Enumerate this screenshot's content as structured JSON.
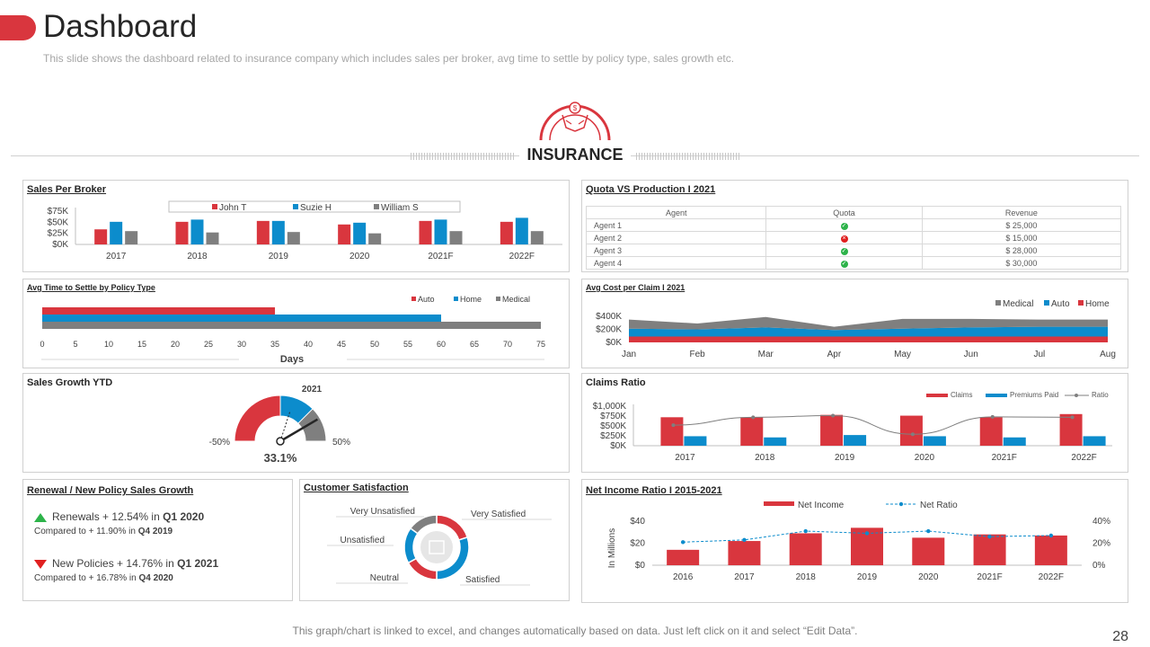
{
  "header": {
    "title": "Dashboard",
    "subtitle": "This slide shows the dashboard related to insurance company which includes sales per broker, avg time to settle by policy type, sales growth etc."
  },
  "banner": {
    "label": "INSURANCE",
    "icon": "insurance-hands-coin-icon"
  },
  "footer": {
    "note": "This graph/chart is linked to excel, and changes automatically based on data. Just left click on it and select “Edit Data”.",
    "page": "28"
  },
  "colors": {
    "red": "#d9363e",
    "blue": "#0c8ccc",
    "gray": "#7f7f7f",
    "green": "#2db34a"
  },
  "sales_per_broker": {
    "title": "Sales Per Broker",
    "chart_data": {
      "type": "bar",
      "categories": [
        "2017",
        "2018",
        "2019",
        "2020",
        "2021F",
        "2022F"
      ],
      "series": [
        {
          "name": "John T",
          "values": [
            34000,
            51000,
            53000,
            45000,
            53000,
            51000
          ]
        },
        {
          "name": "Suzie H",
          "values": [
            51000,
            56000,
            53000,
            49000,
            56000,
            60000
          ]
        },
        {
          "name": "William S",
          "values": [
            30000,
            27000,
            28000,
            25000,
            30000,
            30000
          ]
        }
      ],
      "ylim": [
        0,
        75000
      ],
      "yticks": [
        "$0K",
        "$25K",
        "$50K",
        "$75K"
      ]
    }
  },
  "quota": {
    "title": "Quota VS Production I 2021",
    "columns": [
      "Agent",
      "Quota",
      "Revenue"
    ],
    "rows": [
      {
        "agent": "Agent 1",
        "quota": "met",
        "revenue": "$ 25,000"
      },
      {
        "agent": "Agent 2",
        "quota": "missed",
        "revenue": "$ 15,000"
      },
      {
        "agent": "Agent 3",
        "quota": "met",
        "revenue": "$ 28,000"
      },
      {
        "agent": "Agent 4",
        "quota": "met",
        "revenue": "$ 30,000"
      }
    ]
  },
  "avg_time": {
    "title": "Avg Time to Settle by Policy Type",
    "chart_data": {
      "type": "bar",
      "orientation": "horizontal",
      "series": [
        {
          "name": "Auto",
          "value": 35
        },
        {
          "name": "Home",
          "value": 60
        },
        {
          "name": "Medical",
          "value": 75
        }
      ],
      "xlim": [
        0,
        75
      ],
      "xticks": [
        "0",
        "5",
        "10",
        "15",
        "20",
        "25",
        "30",
        "35",
        "40",
        "45",
        "50",
        "55",
        "60",
        "65",
        "70",
        "75"
      ],
      "xlabel": "Days"
    }
  },
  "avg_cost": {
    "title": "Avg Cost per Claim I 2021",
    "chart_data": {
      "type": "area",
      "categories": [
        "Jan",
        "Feb",
        "Mar",
        "Apr",
        "May",
        "Jun",
        "Jul",
        "Aug"
      ],
      "series": [
        {
          "name": "Home",
          "values": [
            90000,
            90000,
            90000,
            90000,
            90000,
            90000,
            90000,
            90000
          ]
        },
        {
          "name": "Auto",
          "values": [
            120000,
            110000,
            140000,
            100000,
            120000,
            140000,
            150000,
            150000
          ]
        },
        {
          "name": "Medical",
          "values": [
            140000,
            90000,
            160000,
            50000,
            150000,
            130000,
            110000,
            110000
          ]
        }
      ],
      "stacked": true,
      "ylim": [
        0,
        400000
      ],
      "yticks": [
        "$0K",
        "$200K",
        "$400K"
      ],
      "legend": [
        "Medical",
        "Auto",
        "Home"
      ]
    }
  },
  "sales_growth": {
    "title": "Sales Growth YTD",
    "chart_data": {
      "type": "gauge",
      "min": -50,
      "max": 50,
      "value": 33.1,
      "year": "2021",
      "min_label": "-50%",
      "max_label": "50%",
      "value_label": "33.1%"
    }
  },
  "claims_ratio": {
    "title": "Claims Ratio",
    "chart_data": {
      "type": "bar",
      "categories": [
        "2017",
        "2018",
        "2019",
        "2020",
        "2021F",
        "2022F"
      ],
      "series": [
        {
          "name": "Claims",
          "values": [
            720000,
            720000,
            780000,
            760000,
            720000,
            800000
          ]
        },
        {
          "name": "Premiums Paid",
          "values": [
            240000,
            210000,
            270000,
            240000,
            210000,
            240000
          ]
        },
        {
          "name": "Ratio",
          "values": [
            520000,
            720000,
            760000,
            290000,
            730000,
            720000
          ]
        }
      ],
      "ylim": [
        0,
        1000000
      ],
      "yticks": [
        "$0K",
        "$250K",
        "$500K",
        "$750K",
        "$1,000K"
      ]
    }
  },
  "renewal": {
    "title": "Renewal / New Policy Sales Growth",
    "renewals": {
      "label": "Renewals",
      "change": "+ 12.54% in",
      "period": "Q1 2020",
      "compare": "Compared to + 11.90% in",
      "compare_period": "Q4 2019"
    },
    "new_policies": {
      "label": "New Policies",
      "change": "+ 14.76% in",
      "period": "Q1 2021",
      "compare": "Compared to + 16.78% in",
      "compare_period": "Q4 2020"
    }
  },
  "satisfaction": {
    "title": "Customer Satisfaction",
    "chart_data": {
      "type": "pie",
      "donut": true,
      "slices": [
        {
          "label": "Very Satisfied",
          "value": 20
        },
        {
          "label": "Satisfied",
          "value": 30
        },
        {
          "label": "Neutral",
          "value": 17
        },
        {
          "label": "Unsatisfied",
          "value": 18
        },
        {
          "label": "Very Unsatisfied",
          "value": 15
        }
      ]
    }
  },
  "net_income": {
    "title": "Net Income Ratio I 2015-2021",
    "chart_data": {
      "type": "bar",
      "categories": [
        "2016",
        "2017",
        "2018",
        "2019",
        "2020",
        "2021F",
        "2022F"
      ],
      "series": [
        {
          "name": "Net Income",
          "values": [
            14,
            22,
            29,
            34,
            25,
            28,
            27
          ]
        },
        {
          "name": "Net Ratio",
          "values": [
            21,
            23,
            31,
            29,
            31,
            26,
            27
          ]
        }
      ],
      "ylim": [
        0,
        40
      ],
      "yticks": [
        "$0",
        "$20",
        "$40"
      ],
      "y2ticks": [
        "0%",
        "20%",
        "40%"
      ],
      "ylabel": "In Millions"
    }
  }
}
